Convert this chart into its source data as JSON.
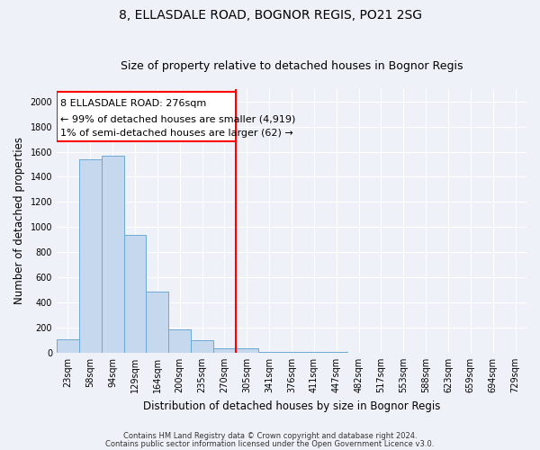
{
  "title": "8, ELLASDALE ROAD, BOGNOR REGIS, PO21 2SG",
  "subtitle": "Size of property relative to detached houses in Bognor Regis",
  "xlabel": "Distribution of detached houses by size in Bognor Regis",
  "ylabel": "Number of detached properties",
  "categories": [
    "23sqm",
    "58sqm",
    "94sqm",
    "129sqm",
    "164sqm",
    "200sqm",
    "235sqm",
    "270sqm",
    "305sqm",
    "341sqm",
    "376sqm",
    "411sqm",
    "447sqm",
    "482sqm",
    "517sqm",
    "553sqm",
    "588sqm",
    "623sqm",
    "659sqm",
    "694sqm",
    "729sqm"
  ],
  "values": [
    110,
    1540,
    1570,
    940,
    490,
    185,
    100,
    35,
    35,
    10,
    8,
    5,
    5,
    3,
    3,
    2,
    2,
    2,
    2,
    2,
    2
  ],
  "bar_color": "#c5d8ee",
  "bar_edge_color": "#6aaad4",
  "red_line_x": 7.5,
  "annotation_label1": "8 ELLASDALE ROAD: 276sqm",
  "annotation_label2": "← 99% of detached houses are smaller (4,919)",
  "annotation_label3": "1% of semi-detached houses are larger (62) →",
  "ylim": [
    0,
    2100
  ],
  "yticks": [
    0,
    200,
    400,
    600,
    800,
    1000,
    1200,
    1400,
    1600,
    1800,
    2000
  ],
  "footnote1": "Contains HM Land Registry data © Crown copyright and database right 2024.",
  "footnote2": "Contains public sector information licensed under the Open Government Licence v3.0.",
  "background_color": "#eef2f8",
  "grid_color": "#ffffff",
  "title_fontsize": 10,
  "subtitle_fontsize": 9,
  "tick_fontsize": 7,
  "ylabel_fontsize": 8.5,
  "xlabel_fontsize": 8.5,
  "annotation_fontsize": 8
}
